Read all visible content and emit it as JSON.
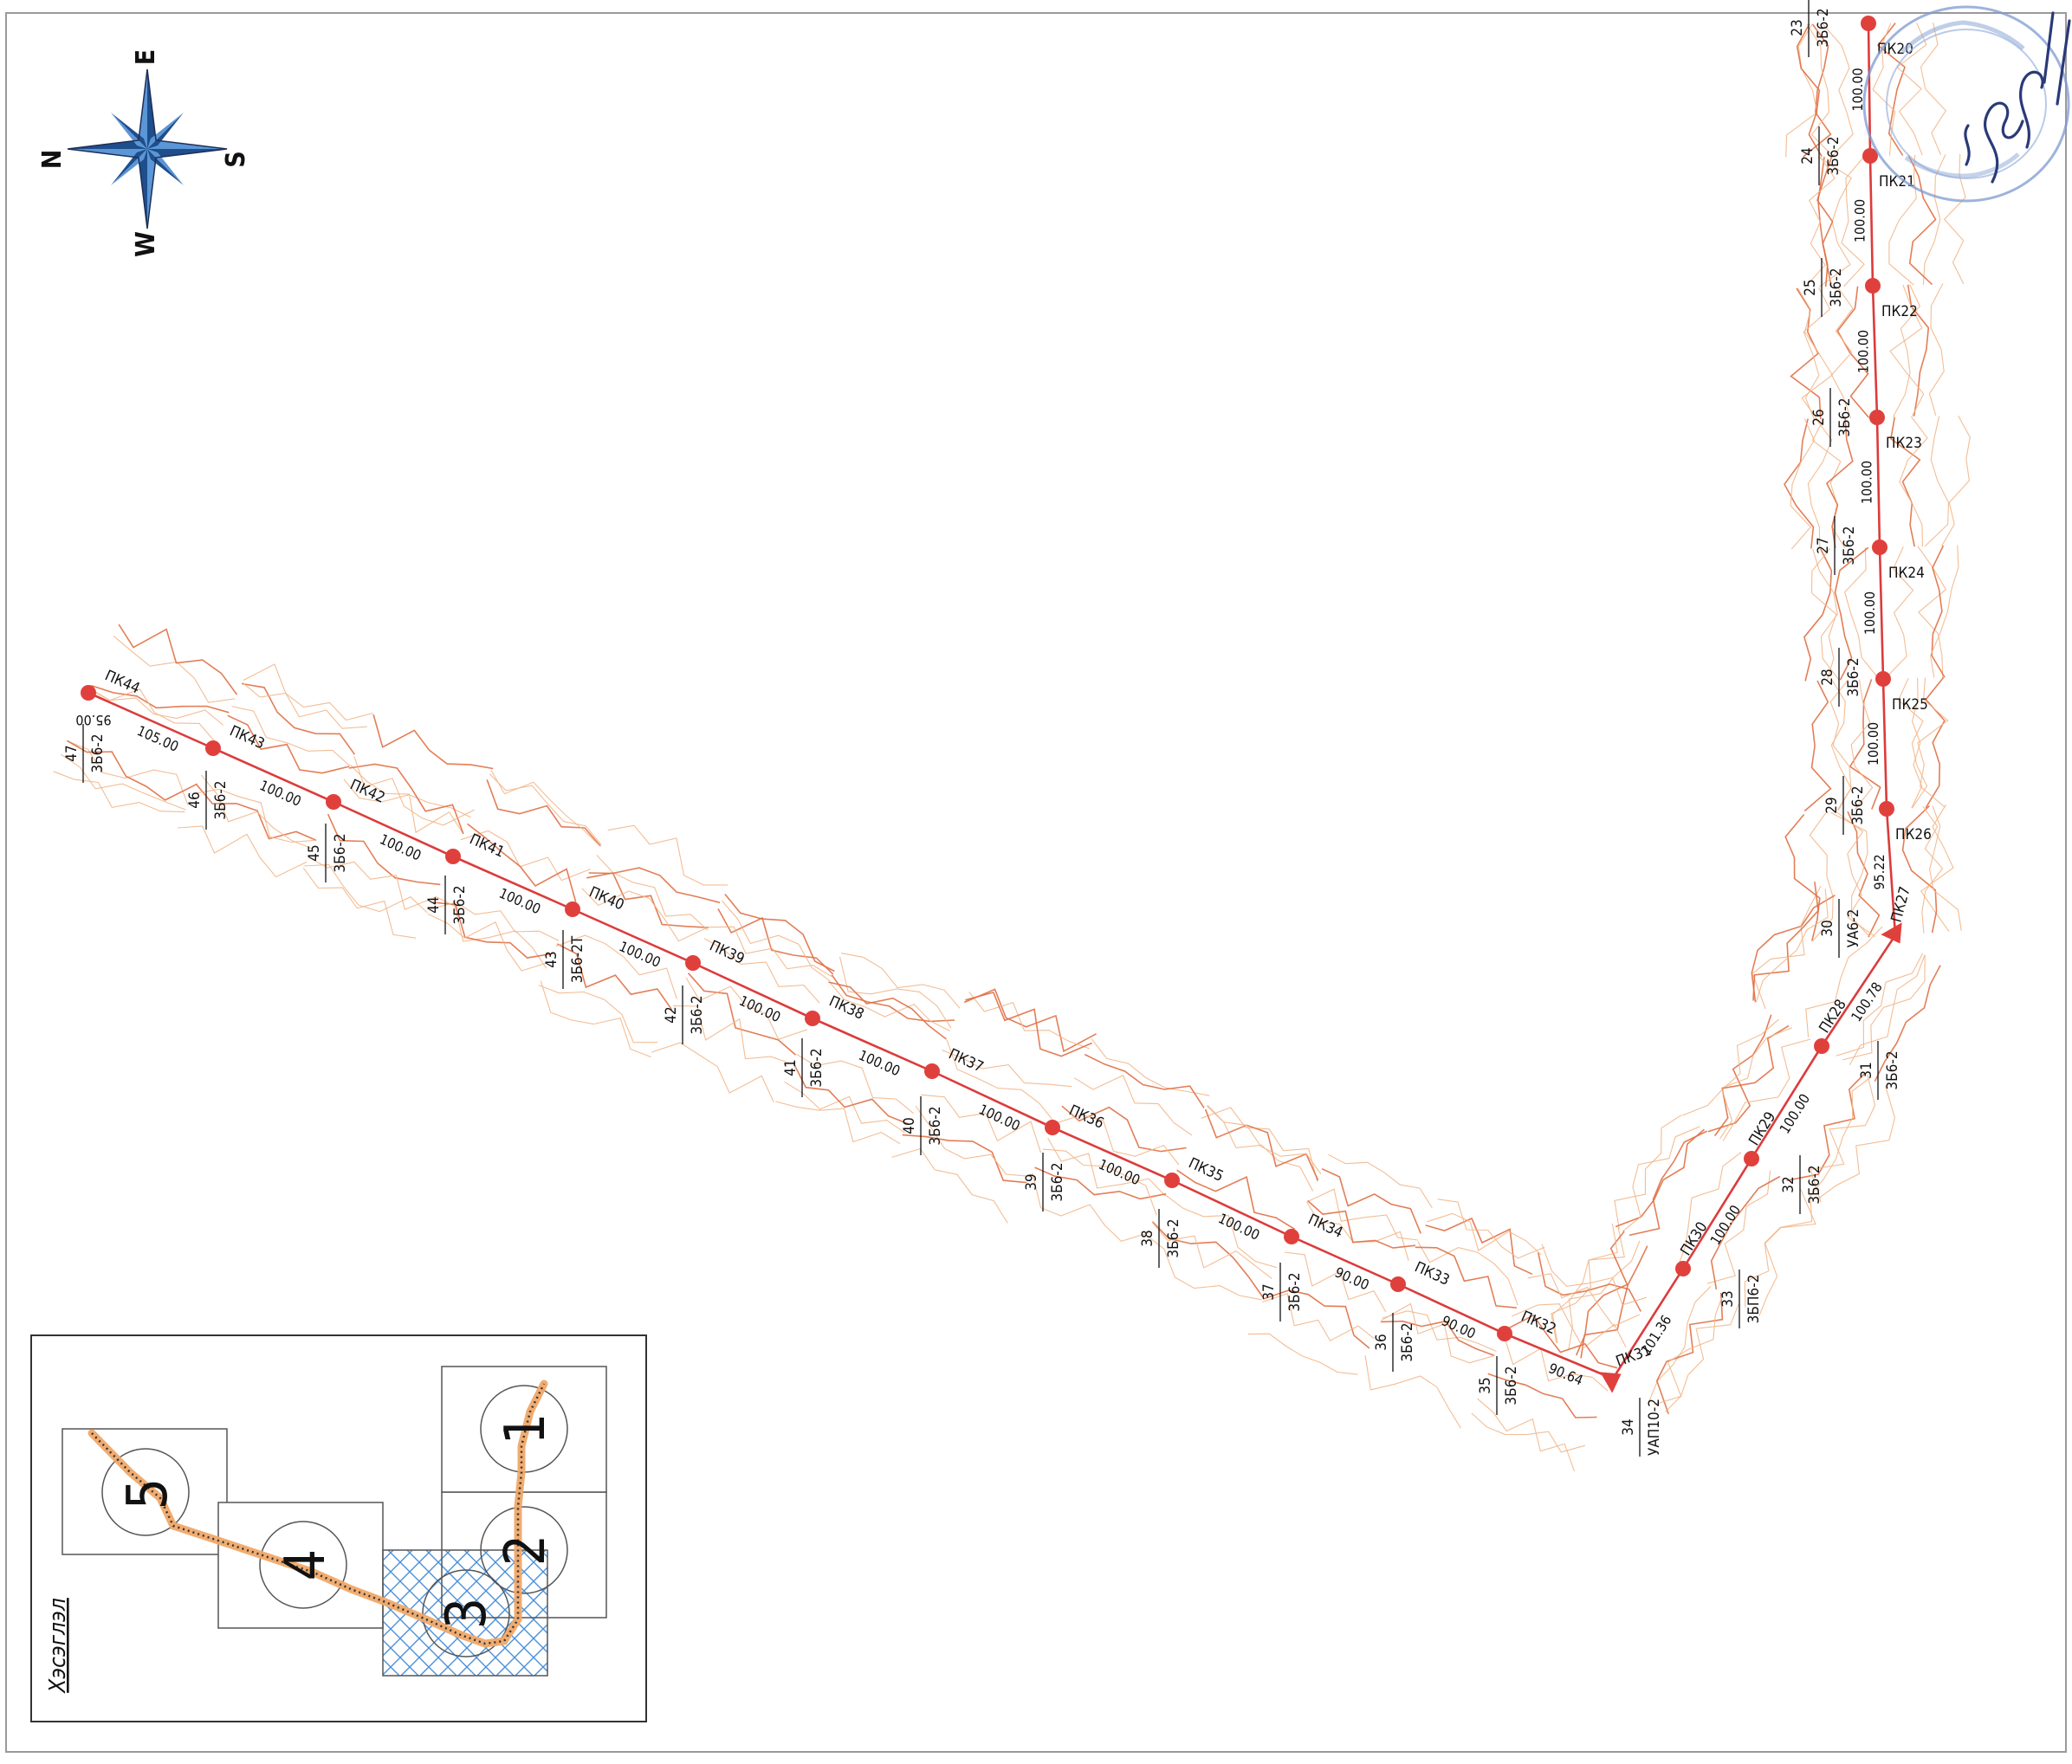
{
  "compass": {
    "labels": [
      "N",
      "E",
      "S",
      "W"
    ]
  },
  "colors": {
    "route": "#dc3b3b",
    "node": "#e0403c",
    "contour_dark": "#e07045",
    "contour_light": "#f2b688",
    "label": "#111111",
    "stamp": "#6f8fc4",
    "hatch": "#4a8fd8"
  },
  "pickets": [
    "ПК20",
    "ПК21",
    "ПК22",
    "ПК23",
    "ПК24",
    "ПК25",
    "ПК26",
    "ПК27",
    "ПК28",
    "ПК29",
    "ПК30",
    "ПК31",
    "ПК32",
    "ПК33",
    "ПК34",
    "ПК35",
    "ПК36",
    "ПК37",
    "ПК38",
    "ПК39",
    "ПК40",
    "ПК41",
    "ПК42",
    "ПК43",
    "ПК44"
  ],
  "spans": [
    "100.00",
    "100.00",
    "100.00",
    "100.00",
    "100.00",
    "100.00",
    "95.22",
    "100.78",
    "100.00",
    "100.00",
    "101.36",
    "90.64",
    "90.00",
    "90.00",
    "100.00",
    "100.00",
    "100.00",
    "100.00",
    "100.00",
    "100.00",
    "100.00",
    "100.00",
    "100.00",
    "105.00",
    "95.00"
  ],
  "supports": [
    {
      "num": "23",
      "type": "3Б6-2"
    },
    {
      "num": "24",
      "type": "3Б6-2"
    },
    {
      "num": "25",
      "type": "3Б6-2"
    },
    {
      "num": "26",
      "type": "3Б6-2"
    },
    {
      "num": "27",
      "type": "3Б6-2"
    },
    {
      "num": "28",
      "type": "3Б6-2"
    },
    {
      "num": "29",
      "type": "3Б6-2"
    },
    {
      "num": "30",
      "type": "УА6-2"
    },
    {
      "num": "31",
      "type": "3Б6-2"
    },
    {
      "num": "32",
      "type": "3Б6-2"
    },
    {
      "num": "33",
      "type": "3БП6-2"
    },
    {
      "num": "34",
      "type": "УАП10-2"
    },
    {
      "num": "35",
      "type": "3Б6-2"
    },
    {
      "num": "36",
      "type": "3Б6-2"
    },
    {
      "num": "37",
      "type": "3Б6-2"
    },
    {
      "num": "38",
      "type": "3Б6-2"
    },
    {
      "num": "39",
      "type": "3Б6-2"
    },
    {
      "num": "40",
      "type": "3Б6-2"
    },
    {
      "num": "41",
      "type": "3Б6-2"
    },
    {
      "num": "42",
      "type": "3Б6-2"
    },
    {
      "num": "43",
      "type": "3Б6-2Т"
    },
    {
      "num": "44",
      "type": "3Б6-2"
    },
    {
      "num": "45",
      "type": "3Б6-2"
    },
    {
      "num": "46",
      "type": "3Б6-2"
    },
    {
      "num": "47",
      "type": "3Б6-2"
    }
  ],
  "keymap": {
    "title": "Хэсэглэл",
    "sheets": [
      "1",
      "2",
      "3",
      "4",
      "5"
    ],
    "active_sheet": "3"
  }
}
